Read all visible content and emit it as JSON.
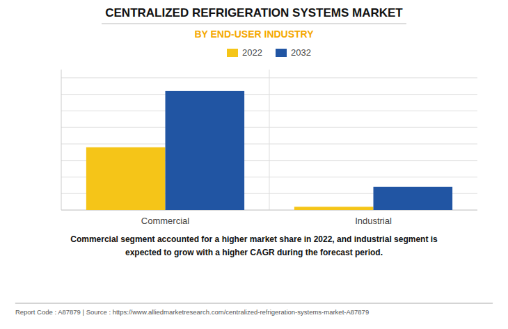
{
  "chart_data": {
    "type": "bar",
    "title": "CENTRALIZED REFRIGERATION SYSTEMS MARKET",
    "subtitle": "BY END-USER INDUSTRY",
    "categories": [
      "Commercial",
      "Industrial"
    ],
    "series": [
      {
        "name": "2022",
        "color": "#F5C518",
        "values": [
          38,
          2
        ]
      },
      {
        "name": "2032",
        "color": "#2155A3",
        "values": [
          72,
          14
        ]
      }
    ],
    "ylim": [
      0,
      85
    ],
    "yticks": [
      0,
      10,
      20,
      30,
      40,
      50,
      60,
      70,
      80
    ],
    "grid": true,
    "legend": "top",
    "tick_labels": "x",
    "annotations": [
      "Commercial segment accounted for a higher market share in 2022, and industrial segment is\nexpected to grow with a higher CAGR during the forecast period.",
      "Report Code : A87879  |  Source : https://www.alliedmarketresearch.com/centralized-refrigeration-systems-market-A87879"
    ]
  }
}
